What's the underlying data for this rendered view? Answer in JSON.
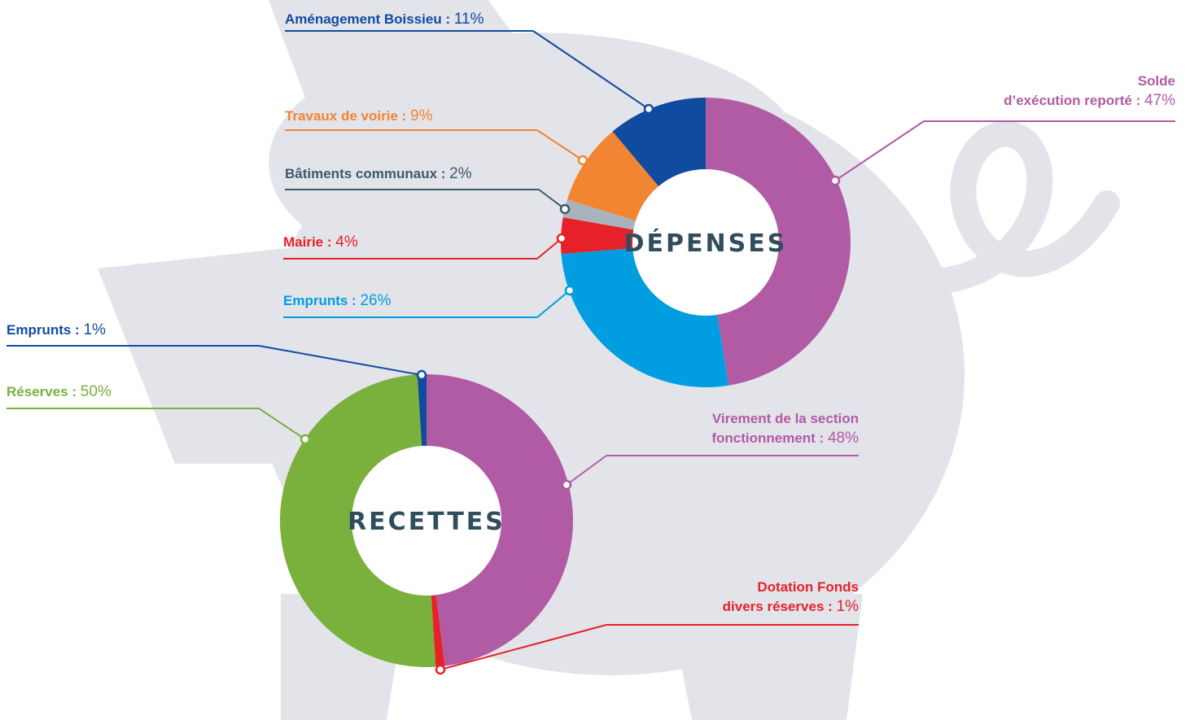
{
  "chart_data": [
    {
      "type": "donut",
      "title": "DÉPENSES",
      "categories": [
        "Solde\nd’exécution reporté :",
        "Emprunts :",
        "Mairie :",
        "Bâtiments communaux :",
        "Travaux de voirie :",
        "Aménagement Boissieu :"
      ],
      "values": [
        47,
        26,
        4,
        2,
        9,
        11
      ],
      "value_labels": [
        "47%",
        "26%",
        "4%",
        "2%",
        "9%",
        "11%"
      ],
      "colors": [
        "#b15ba5",
        "#009ee0",
        "#e62129",
        "#a9b3bb",
        "#f18532",
        "#0f4c9f"
      ],
      "label_colors": [
        "#b15ba5",
        "#009ee0",
        "#e62129",
        "#3c5a6a",
        "#f18532",
        "#0f4c9f"
      ]
    },
    {
      "type": "donut",
      "title": "RECETTES",
      "categories": [
        "Virement de la section\nfonctionnement :",
        "Dotation Fonds\ndivers réserves :",
        "Réserves :",
        "Emprunts :"
      ],
      "values": [
        48,
        1,
        50,
        1
      ],
      "value_labels": [
        "48%",
        "1%",
        "50%",
        "1%"
      ],
      "colors": [
        "#b15ba5",
        "#e62129",
        "#7ab03c",
        "#0f4c9f"
      ],
      "label_colors": [
        "#b15ba5",
        "#e62129",
        "#7ab03c",
        "#0f4c9f"
      ]
    }
  ]
}
